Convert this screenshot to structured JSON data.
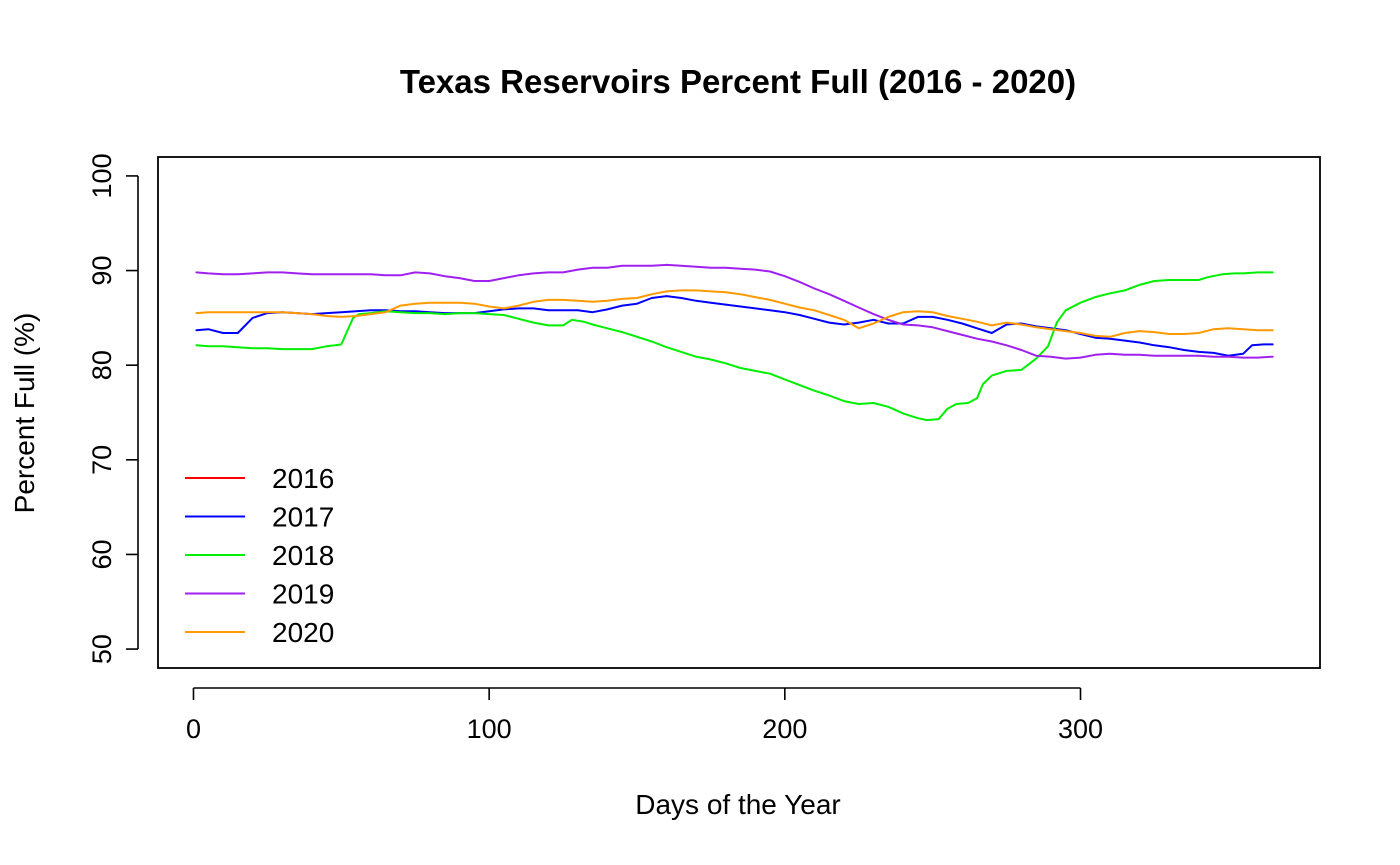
{
  "chart_data": {
    "type": "line",
    "title": "Texas Reservoirs Percent Full (2016 - 2020)",
    "xlabel": "Days of the Year",
    "ylabel": "Percent Full (%)",
    "xlim": [
      -12,
      381
    ],
    "ylim": [
      48,
      102
    ],
    "x_ticks": [
      0,
      100,
      200,
      300
    ],
    "y_ticks": [
      50,
      60,
      70,
      80,
      90,
      100
    ],
    "grid": false,
    "legend_position": "bottom-left",
    "series": [
      {
        "name": "2016",
        "color": "#ff0000",
        "points": []
      },
      {
        "name": "2017",
        "color": "#0000ff",
        "points": [
          [
            1,
            83.7
          ],
          [
            5,
            83.8
          ],
          [
            10,
            83.4
          ],
          [
            15,
            83.4
          ],
          [
            20,
            85.0
          ],
          [
            25,
            85.5
          ],
          [
            30,
            85.6
          ],
          [
            35,
            85.5
          ],
          [
            40,
            85.4
          ],
          [
            45,
            85.5
          ],
          [
            50,
            85.6
          ],
          [
            55,
            85.7
          ],
          [
            60,
            85.8
          ],
          [
            65,
            85.8
          ],
          [
            70,
            85.7
          ],
          [
            75,
            85.7
          ],
          [
            80,
            85.6
          ],
          [
            85,
            85.5
          ],
          [
            90,
            85.5
          ],
          [
            95,
            85.5
          ],
          [
            100,
            85.7
          ],
          [
            105,
            85.9
          ],
          [
            110,
            86.0
          ],
          [
            115,
            86.0
          ],
          [
            120,
            85.8
          ],
          [
            125,
            85.8
          ],
          [
            130,
            85.8
          ],
          [
            135,
            85.6
          ],
          [
            140,
            85.9
          ],
          [
            145,
            86.3
          ],
          [
            150,
            86.5
          ],
          [
            155,
            87.1
          ],
          [
            160,
            87.3
          ],
          [
            165,
            87.1
          ],
          [
            170,
            86.8
          ],
          [
            175,
            86.6
          ],
          [
            180,
            86.4
          ],
          [
            185,
            86.2
          ],
          [
            190,
            86.0
          ],
          [
            195,
            85.8
          ],
          [
            200,
            85.6
          ],
          [
            205,
            85.3
          ],
          [
            210,
            84.9
          ],
          [
            215,
            84.5
          ],
          [
            220,
            84.3
          ],
          [
            225,
            84.5
          ],
          [
            230,
            84.8
          ],
          [
            235,
            84.4
          ],
          [
            240,
            84.4
          ],
          [
            245,
            85.1
          ],
          [
            250,
            85.1
          ],
          [
            255,
            84.8
          ],
          [
            260,
            84.4
          ],
          [
            265,
            83.9
          ],
          [
            270,
            83.4
          ],
          [
            275,
            84.3
          ],
          [
            280,
            84.4
          ],
          [
            285,
            84.1
          ],
          [
            290,
            83.9
          ],
          [
            295,
            83.7
          ],
          [
            300,
            83.3
          ],
          [
            305,
            82.9
          ],
          [
            310,
            82.8
          ],
          [
            315,
            82.6
          ],
          [
            320,
            82.4
          ],
          [
            325,
            82.1
          ],
          [
            330,
            81.9
          ],
          [
            335,
            81.6
          ],
          [
            340,
            81.4
          ],
          [
            345,
            81.3
          ],
          [
            350,
            81.0
          ],
          [
            355,
            81.2
          ],
          [
            358,
            82.1
          ],
          [
            362,
            82.2
          ],
          [
            365,
            82.2
          ]
        ]
      },
      {
        "name": "2018",
        "color": "#00ee00",
        "points": [
          [
            1,
            82.1
          ],
          [
            5,
            82.0
          ],
          [
            10,
            82.0
          ],
          [
            15,
            81.9
          ],
          [
            20,
            81.8
          ],
          [
            25,
            81.8
          ],
          [
            30,
            81.7
          ],
          [
            35,
            81.7
          ],
          [
            40,
            81.7
          ],
          [
            45,
            82.0
          ],
          [
            48,
            82.1
          ],
          [
            50,
            82.2
          ],
          [
            52,
            83.6
          ],
          [
            54,
            85.0
          ],
          [
            56,
            85.4
          ],
          [
            60,
            85.5
          ],
          [
            65,
            85.7
          ],
          [
            70,
            85.6
          ],
          [
            75,
            85.5
          ],
          [
            80,
            85.5
          ],
          [
            85,
            85.4
          ],
          [
            90,
            85.5
          ],
          [
            95,
            85.5
          ],
          [
            100,
            85.4
          ],
          [
            105,
            85.3
          ],
          [
            110,
            84.9
          ],
          [
            115,
            84.5
          ],
          [
            120,
            84.2
          ],
          [
            125,
            84.2
          ],
          [
            128,
            84.8
          ],
          [
            132,
            84.6
          ],
          [
            135,
            84.3
          ],
          [
            140,
            83.9
          ],
          [
            145,
            83.5
          ],
          [
            150,
            83.0
          ],
          [
            155,
            82.5
          ],
          [
            160,
            81.9
          ],
          [
            165,
            81.4
          ],
          [
            170,
            80.9
          ],
          [
            175,
            80.6
          ],
          [
            180,
            80.2
          ],
          [
            185,
            79.7
          ],
          [
            190,
            79.4
          ],
          [
            195,
            79.1
          ],
          [
            200,
            78.5
          ],
          [
            205,
            77.9
          ],
          [
            210,
            77.3
          ],
          [
            215,
            76.8
          ],
          [
            220,
            76.2
          ],
          [
            225,
            75.9
          ],
          [
            230,
            76.0
          ],
          [
            235,
            75.6
          ],
          [
            240,
            74.9
          ],
          [
            245,
            74.4
          ],
          [
            248,
            74.2
          ],
          [
            252,
            74.3
          ],
          [
            255,
            75.4
          ],
          [
            258,
            75.9
          ],
          [
            262,
            76.0
          ],
          [
            265,
            76.5
          ],
          [
            267,
            78.0
          ],
          [
            270,
            78.9
          ],
          [
            275,
            79.4
          ],
          [
            280,
            79.5
          ],
          [
            285,
            80.7
          ],
          [
            289,
            82.0
          ],
          [
            292,
            84.5
          ],
          [
            295,
            85.8
          ],
          [
            300,
            86.6
          ],
          [
            305,
            87.2
          ],
          [
            310,
            87.6
          ],
          [
            315,
            87.9
          ],
          [
            320,
            88.5
          ],
          [
            325,
            88.9
          ],
          [
            330,
            89.0
          ],
          [
            335,
            89.0
          ],
          [
            340,
            89.0
          ],
          [
            343,
            89.3
          ],
          [
            348,
            89.6
          ],
          [
            352,
            89.7
          ],
          [
            355,
            89.7
          ],
          [
            360,
            89.8
          ],
          [
            365,
            89.8
          ]
        ]
      },
      {
        "name": "2019",
        "color": "#a020f0",
        "points": [
          [
            1,
            89.8
          ],
          [
            5,
            89.7
          ],
          [
            10,
            89.6
          ],
          [
            15,
            89.6
          ],
          [
            20,
            89.7
          ],
          [
            25,
            89.8
          ],
          [
            30,
            89.8
          ],
          [
            35,
            89.7
          ],
          [
            40,
            89.6
          ],
          [
            45,
            89.6
          ],
          [
            50,
            89.6
          ],
          [
            55,
            89.6
          ],
          [
            60,
            89.6
          ],
          [
            65,
            89.5
          ],
          [
            70,
            89.5
          ],
          [
            75,
            89.8
          ],
          [
            80,
            89.7
          ],
          [
            85,
            89.4
          ],
          [
            90,
            89.2
          ],
          [
            95,
            88.9
          ],
          [
            100,
            88.9
          ],
          [
            105,
            89.2
          ],
          [
            110,
            89.5
          ],
          [
            115,
            89.7
          ],
          [
            120,
            89.8
          ],
          [
            125,
            89.8
          ],
          [
            130,
            90.1
          ],
          [
            135,
            90.3
          ],
          [
            140,
            90.3
          ],
          [
            145,
            90.5
          ],
          [
            150,
            90.5
          ],
          [
            155,
            90.5
          ],
          [
            160,
            90.6
          ],
          [
            165,
            90.5
          ],
          [
            170,
            90.4
          ],
          [
            175,
            90.3
          ],
          [
            180,
            90.3
          ],
          [
            185,
            90.2
          ],
          [
            190,
            90.1
          ],
          [
            195,
            89.9
          ],
          [
            200,
            89.4
          ],
          [
            205,
            88.8
          ],
          [
            210,
            88.1
          ],
          [
            215,
            87.5
          ],
          [
            220,
            86.8
          ],
          [
            225,
            86.1
          ],
          [
            230,
            85.4
          ],
          [
            235,
            84.8
          ],
          [
            240,
            84.3
          ],
          [
            245,
            84.2
          ],
          [
            250,
            84.0
          ],
          [
            255,
            83.6
          ],
          [
            260,
            83.2
          ],
          [
            265,
            82.8
          ],
          [
            270,
            82.5
          ],
          [
            275,
            82.1
          ],
          [
            280,
            81.6
          ],
          [
            285,
            81.0
          ],
          [
            290,
            80.9
          ],
          [
            295,
            80.7
          ],
          [
            300,
            80.8
          ],
          [
            305,
            81.1
          ],
          [
            310,
            81.2
          ],
          [
            315,
            81.1
          ],
          [
            320,
            81.1
          ],
          [
            325,
            81.0
          ],
          [
            330,
            81.0
          ],
          [
            335,
            81.0
          ],
          [
            340,
            81.0
          ],
          [
            345,
            80.9
          ],
          [
            350,
            80.9
          ],
          [
            355,
            80.8
          ],
          [
            360,
            80.8
          ],
          [
            365,
            80.9
          ]
        ]
      },
      {
        "name": "2020",
        "color": "#ff9900",
        "points": [
          [
            1,
            85.5
          ],
          [
            5,
            85.6
          ],
          [
            10,
            85.6
          ],
          [
            15,
            85.6
          ],
          [
            20,
            85.6
          ],
          [
            25,
            85.6
          ],
          [
            30,
            85.6
          ],
          [
            35,
            85.5
          ],
          [
            40,
            85.4
          ],
          [
            45,
            85.2
          ],
          [
            50,
            85.1
          ],
          [
            55,
            85.2
          ],
          [
            60,
            85.4
          ],
          [
            65,
            85.6
          ],
          [
            70,
            86.3
          ],
          [
            75,
            86.5
          ],
          [
            80,
            86.6
          ],
          [
            85,
            86.6
          ],
          [
            90,
            86.6
          ],
          [
            95,
            86.5
          ],
          [
            100,
            86.2
          ],
          [
            105,
            86.0
          ],
          [
            110,
            86.3
          ],
          [
            115,
            86.7
          ],
          [
            120,
            86.9
          ],
          [
            125,
            86.9
          ],
          [
            130,
            86.8
          ],
          [
            135,
            86.7
          ],
          [
            140,
            86.8
          ],
          [
            145,
            87.0
          ],
          [
            150,
            87.1
          ],
          [
            155,
            87.5
          ],
          [
            160,
            87.8
          ],
          [
            165,
            87.9
          ],
          [
            170,
            87.9
          ],
          [
            175,
            87.8
          ],
          [
            180,
            87.7
          ],
          [
            185,
            87.5
          ],
          [
            190,
            87.2
          ],
          [
            195,
            86.9
          ],
          [
            200,
            86.5
          ],
          [
            205,
            86.1
          ],
          [
            210,
            85.8
          ],
          [
            215,
            85.3
          ],
          [
            220,
            84.8
          ],
          [
            225,
            83.9
          ],
          [
            230,
            84.4
          ],
          [
            235,
            85.1
          ],
          [
            240,
            85.6
          ],
          [
            245,
            85.7
          ],
          [
            250,
            85.6
          ],
          [
            255,
            85.2
          ],
          [
            260,
            84.9
          ],
          [
            265,
            84.6
          ],
          [
            270,
            84.2
          ],
          [
            275,
            84.5
          ],
          [
            280,
            84.3
          ],
          [
            285,
            84.0
          ],
          [
            290,
            83.8
          ],
          [
            295,
            83.6
          ],
          [
            300,
            83.4
          ],
          [
            305,
            83.1
          ],
          [
            310,
            83.0
          ],
          [
            315,
            83.4
          ],
          [
            320,
            83.6
          ],
          [
            325,
            83.5
          ],
          [
            330,
            83.3
          ],
          [
            335,
            83.3
          ],
          [
            340,
            83.4
          ],
          [
            345,
            83.8
          ],
          [
            350,
            83.9
          ],
          [
            355,
            83.8
          ],
          [
            360,
            83.7
          ],
          [
            365,
            83.7
          ]
        ]
      }
    ]
  }
}
